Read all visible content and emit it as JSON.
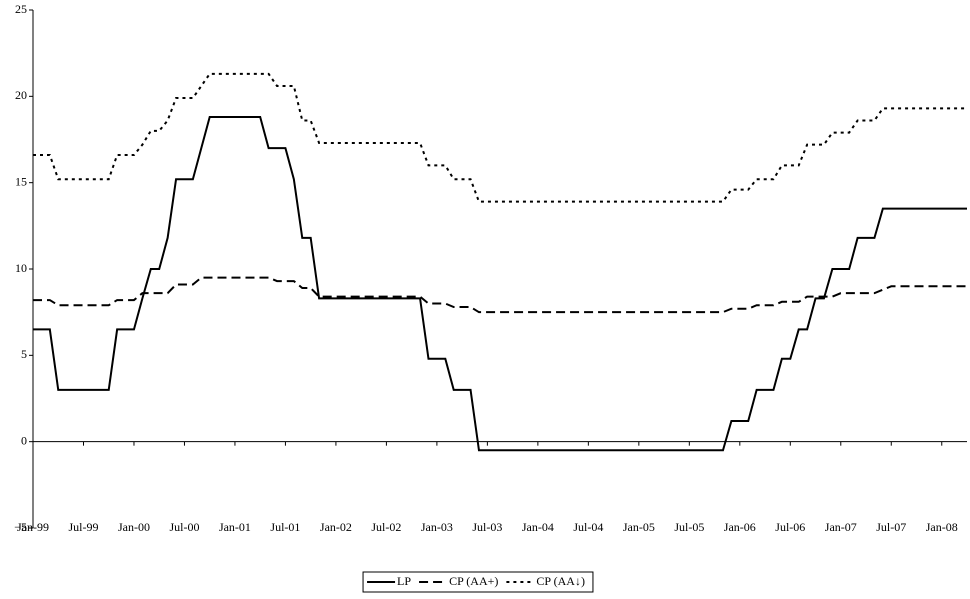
{
  "chart_data": {
    "type": "line",
    "categories": [
      "Jan-99",
      null,
      null,
      null,
      null,
      null,
      "Jul-99",
      null,
      null,
      null,
      null,
      null,
      "Jan-00",
      null,
      null,
      null,
      null,
      null,
      "Jul-00",
      null,
      null,
      null,
      null,
      null,
      "Jan-01",
      null,
      null,
      null,
      null,
      null,
      "Jul-01",
      null,
      null,
      null,
      null,
      null,
      "Jan-02",
      null,
      null,
      null,
      null,
      null,
      "Jul-02",
      null,
      null,
      null,
      null,
      null,
      "Jan-03",
      null,
      null,
      null,
      null,
      null,
      "Jul-03",
      null,
      null,
      null,
      null,
      null,
      "Jan-04",
      null,
      null,
      null,
      null,
      null,
      "Jul-04",
      null,
      null,
      null,
      null,
      null,
      "Jan-05",
      null,
      null,
      null,
      null,
      null,
      "Jul-05",
      null,
      null,
      null,
      null,
      null,
      "Jan-06",
      null,
      null,
      null,
      null,
      null,
      "Jul-06",
      null,
      null,
      null,
      null,
      null,
      "Jan-07",
      null,
      null,
      null,
      null,
      null,
      "Jul-07",
      null,
      null,
      null,
      null,
      null,
      "Jan-08",
      null,
      null,
      null
    ],
    "series": [
      {
        "name": "LP",
        "color": "#000000",
        "dash": "solid",
        "values": [
          6.5,
          6.5,
          6.5,
          3,
          3,
          3,
          3,
          3,
          3,
          3,
          6.5,
          6.5,
          6.5,
          8.3,
          10,
          10,
          11.8,
          15.2,
          15.2,
          15.2,
          17,
          18.8,
          18.8,
          18.8,
          18.8,
          18.8,
          18.8,
          18.8,
          17,
          17,
          17,
          15.2,
          11.8,
          11.8,
          8.3,
          8.3,
          8.3,
          8.3,
          8.3,
          8.3,
          8.3,
          8.3,
          8.3,
          8.3,
          8.3,
          8.3,
          8.3,
          4.8,
          4.8,
          4.8,
          3,
          3,
          3,
          -0.5,
          -0.5,
          -0.5,
          -0.5,
          -0.5,
          -0.5,
          -0.5,
          -0.5,
          -0.5,
          -0.5,
          -0.5,
          -0.5,
          -0.5,
          -0.5,
          -0.5,
          -0.5,
          -0.5,
          -0.5,
          -0.5,
          -0.5,
          -0.5,
          -0.5,
          -0.5,
          -0.5,
          -0.5,
          -0.5,
          -0.5,
          -0.5,
          -0.5,
          -0.5,
          1.2,
          1.2,
          1.2,
          3,
          3,
          3,
          4.8,
          4.8,
          6.5,
          6.5,
          8.3,
          8.3,
          10,
          10,
          10,
          11.8,
          11.8,
          11.8,
          13.5,
          13.5,
          13.5,
          13.5,
          13.5,
          13.5,
          13.5,
          13.5,
          13.5,
          13.5,
          13.5
        ]
      },
      {
        "name": "CP (AA+)",
        "color": "#000000",
        "dash": "dashed",
        "values": [
          8.2,
          8.2,
          8.2,
          7.9,
          7.9,
          7.9,
          7.9,
          7.9,
          7.9,
          7.9,
          8.2,
          8.2,
          8.2,
          8.6,
          8.6,
          8.6,
          8.6,
          9.1,
          9.1,
          9.1,
          9.5,
          9.5,
          9.5,
          9.5,
          9.5,
          9.5,
          9.5,
          9.5,
          9.5,
          9.3,
          9.3,
          9.3,
          8.9,
          8.9,
          8.4,
          8.4,
          8.4,
          8.4,
          8.4,
          8.4,
          8.4,
          8.4,
          8.4,
          8.4,
          8.4,
          8.4,
          8.4,
          8,
          8,
          8,
          7.8,
          7.8,
          7.8,
          7.5,
          7.5,
          7.5,
          7.5,
          7.5,
          7.5,
          7.5,
          7.5,
          7.5,
          7.5,
          7.5,
          7.5,
          7.5,
          7.5,
          7.5,
          7.5,
          7.5,
          7.5,
          7.5,
          7.5,
          7.5,
          7.5,
          7.5,
          7.5,
          7.5,
          7.5,
          7.5,
          7.5,
          7.5,
          7.5,
          7.7,
          7.7,
          7.7,
          7.9,
          7.9,
          7.9,
          8.1,
          8.1,
          8.1,
          8.4,
          8.4,
          8.4,
          8.4,
          8.6,
          8.6,
          8.6,
          8.6,
          8.6,
          8.8,
          9,
          9,
          9,
          9,
          9,
          9,
          9,
          9,
          9,
          9
        ]
      },
      {
        "name": "CP (AA↓)",
        "color": "#000000",
        "dash": "dotted",
        "values": [
          16.6,
          16.6,
          16.6,
          15.2,
          15.2,
          15.2,
          15.2,
          15.2,
          15.2,
          15.2,
          16.6,
          16.6,
          16.6,
          17.2,
          18,
          18,
          18.6,
          19.9,
          19.9,
          19.9,
          20.6,
          21.3,
          21.3,
          21.3,
          21.3,
          21.3,
          21.3,
          21.3,
          21.3,
          20.6,
          20.6,
          20.6,
          18.6,
          18.6,
          17.3,
          17.3,
          17.3,
          17.3,
          17.3,
          17.3,
          17.3,
          17.3,
          17.3,
          17.3,
          17.3,
          17.3,
          17.3,
          16,
          16,
          16,
          15.2,
          15.2,
          15.2,
          13.9,
          13.9,
          13.9,
          13.9,
          13.9,
          13.9,
          13.9,
          13.9,
          13.9,
          13.9,
          13.9,
          13.9,
          13.9,
          13.9,
          13.9,
          13.9,
          13.9,
          13.9,
          13.9,
          13.9,
          13.9,
          13.9,
          13.9,
          13.9,
          13.9,
          13.9,
          13.9,
          13.9,
          13.9,
          13.9,
          14.6,
          14.6,
          14.6,
          15.2,
          15.2,
          15.2,
          16,
          16,
          16,
          17.2,
          17.2,
          17.2,
          17.9,
          17.9,
          17.9,
          18.6,
          18.6,
          18.6,
          19.3,
          19.3,
          19.3,
          19.3,
          19.3,
          19.3,
          19.3,
          19.3,
          19.3,
          19.3,
          19.3
        ]
      }
    ],
    "ylim": [
      -5,
      25
    ],
    "yticks": [
      {
        "value": -5,
        "label": "−5"
      },
      0,
      5,
      10,
      15,
      20,
      25
    ],
    "legend": "bottom"
  }
}
